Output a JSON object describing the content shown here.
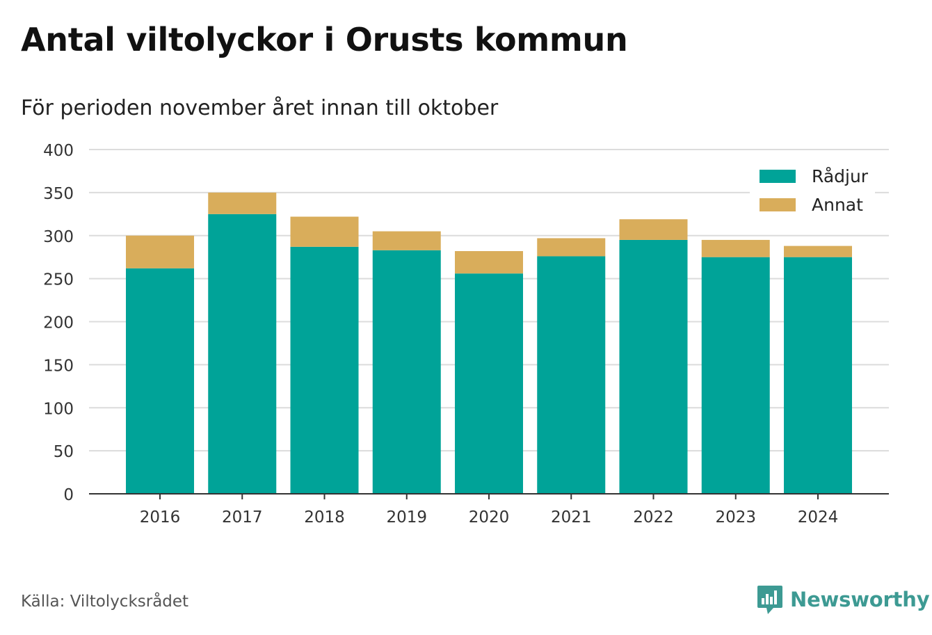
{
  "title": "Antal viltolyckor i Orusts kommun",
  "subtitle": "För perioden november året innan till oktober",
  "source": "Källa: Viltolycksrådet",
  "brand": "Newsworthy",
  "chart_data": {
    "type": "bar",
    "stacked": true,
    "categories": [
      "2016",
      "2017",
      "2018",
      "2019",
      "2020",
      "2021",
      "2022",
      "2023",
      "2024"
    ],
    "series": [
      {
        "name": "Rådjur",
        "color": "#00a398",
        "values": [
          262,
          325,
          287,
          283,
          256,
          276,
          295,
          275,
          275
        ]
      },
      {
        "name": "Annat",
        "color": "#d9ad5b",
        "values": [
          38,
          25,
          35,
          22,
          26,
          21,
          24,
          20,
          13
        ]
      }
    ],
    "ylim": [
      0,
      400
    ],
    "yticks": [
      0,
      50,
      100,
      150,
      200,
      250,
      300,
      350,
      400
    ],
    "grid": true,
    "legend_position": "top-right"
  }
}
